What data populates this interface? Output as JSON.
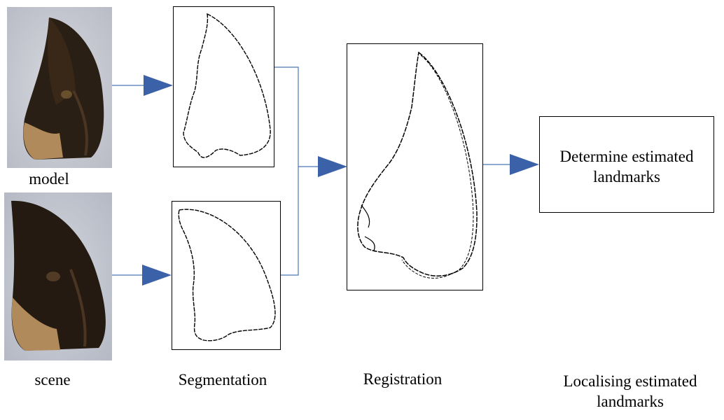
{
  "photos": {
    "model_label": "model",
    "scene_label": "scene"
  },
  "stages": {
    "segmentation": "Segmentation",
    "registration": "Registration",
    "localising_line1": "Localising estimated",
    "localising_line2": "landmarks"
  },
  "result_box": {
    "line1": "Determine estimated",
    "line2": "landmarks"
  },
  "colors": {
    "arrow": "#3b62a8",
    "connector": "#4a78b8",
    "claw_dark": "#2a1f14",
    "claw_base": "#b08a5a",
    "photo_bg": "#c9ccd4"
  },
  "icons": {
    "model_photo": "claw-photo",
    "scene_photo": "claw-photo",
    "segmentation_outline": "claw-outline",
    "registration_outline": "claw-outline-overlay"
  }
}
